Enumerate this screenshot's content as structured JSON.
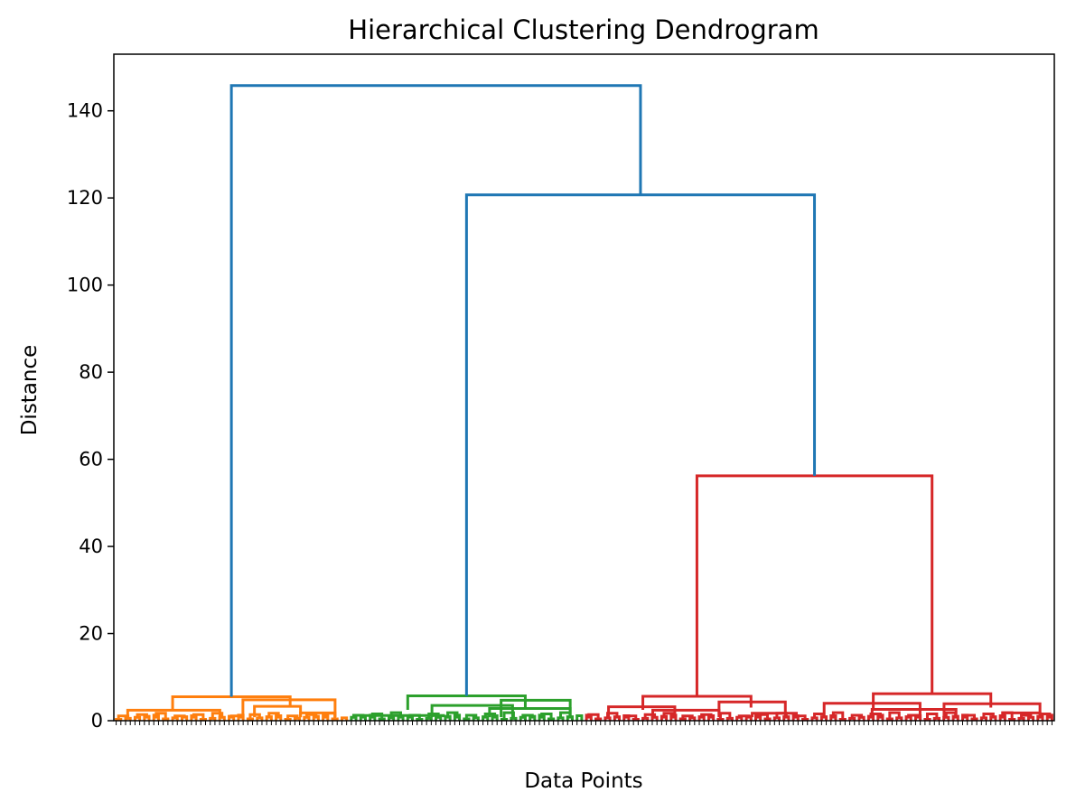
{
  "chart_data": {
    "type": "dendrogram",
    "title": "Hierarchical Clustering Dendrogram",
    "xlabel": "Data Points",
    "ylabel": "Distance",
    "ylim": [
      0,
      153
    ],
    "yticks": [
      0,
      20,
      40,
      60,
      80,
      100,
      120,
      140
    ],
    "grid": false,
    "leaf_count": 200,
    "colors": {
      "link_above_threshold": "#1f77b4",
      "cluster_1": "#ff7f0e",
      "cluster_2": "#2ca02c",
      "cluster_3": "#d62728"
    },
    "clusters": [
      {
        "color_key": "cluster_1",
        "leaves": 50,
        "height": 5.5
      },
      {
        "color_key": "cluster_2",
        "leaves": 50,
        "height": 5.7
      },
      {
        "color_key": "cluster_3a",
        "leaves": 48,
        "height": 5.6
      },
      {
        "color_key": "cluster_3b",
        "leaves": 52,
        "height": 6.2
      }
    ],
    "merges": [
      {
        "between": [
          "cluster_3a",
          "cluster_3b"
        ],
        "height": 56.2,
        "color": "#d62728"
      },
      {
        "between": [
          "cluster_2",
          "cluster_3"
        ],
        "height": 120.7,
        "color": "#1f77b4"
      },
      {
        "between": [
          "cluster_1",
          "cluster_2+3"
        ],
        "height": 145.8,
        "color": "#1f77b4"
      }
    ],
    "sub_links": [
      {
        "cluster": "cluster_1",
        "items": [
          {
            "x1_frac": 0.05,
            "x2_frac": 0.45,
            "height": 2.4
          },
          {
            "x1_frac": 0.55,
            "x2_frac": 0.95,
            "height": 4.8
          },
          {
            "x1_frac": 0.6,
            "x2_frac": 0.8,
            "height": 3.3
          },
          {
            "x1_frac": 0.8,
            "x2_frac": 0.95,
            "height": 1.8
          }
        ]
      },
      {
        "cluster": "cluster_2",
        "items": [
          {
            "x1_frac": 0.05,
            "x2_frac": 0.4,
            "height": 1.2
          },
          {
            "x1_frac": 0.35,
            "x2_frac": 0.7,
            "height": 3.5
          },
          {
            "x1_frac": 0.6,
            "x2_frac": 0.95,
            "height": 2.8
          },
          {
            "x1_frac": 0.65,
            "x2_frac": 0.95,
            "height": 4.7
          }
        ]
      },
      {
        "cluster": "cluster_3a",
        "items": [
          {
            "x1_frac": 0.1,
            "x2_frac": 0.4,
            "height": 3.2
          },
          {
            "x1_frac": 0.3,
            "x2_frac": 0.6,
            "height": 2.4
          },
          {
            "x1_frac": 0.6,
            "x2_frac": 0.9,
            "height": 4.3
          },
          {
            "x1_frac": 0.75,
            "x2_frac": 0.95,
            "height": 1.7
          }
        ]
      },
      {
        "cluster": "cluster_3b",
        "items": [
          {
            "x1_frac": 0.05,
            "x2_frac": 0.45,
            "height": 4.0
          },
          {
            "x1_frac": 0.25,
            "x2_frac": 0.6,
            "height": 2.6
          },
          {
            "x1_frac": 0.55,
            "x2_frac": 0.95,
            "height": 3.9
          },
          {
            "x1_frac": 0.8,
            "x2_frac": 0.95,
            "height": 1.8
          }
        ]
      }
    ]
  }
}
